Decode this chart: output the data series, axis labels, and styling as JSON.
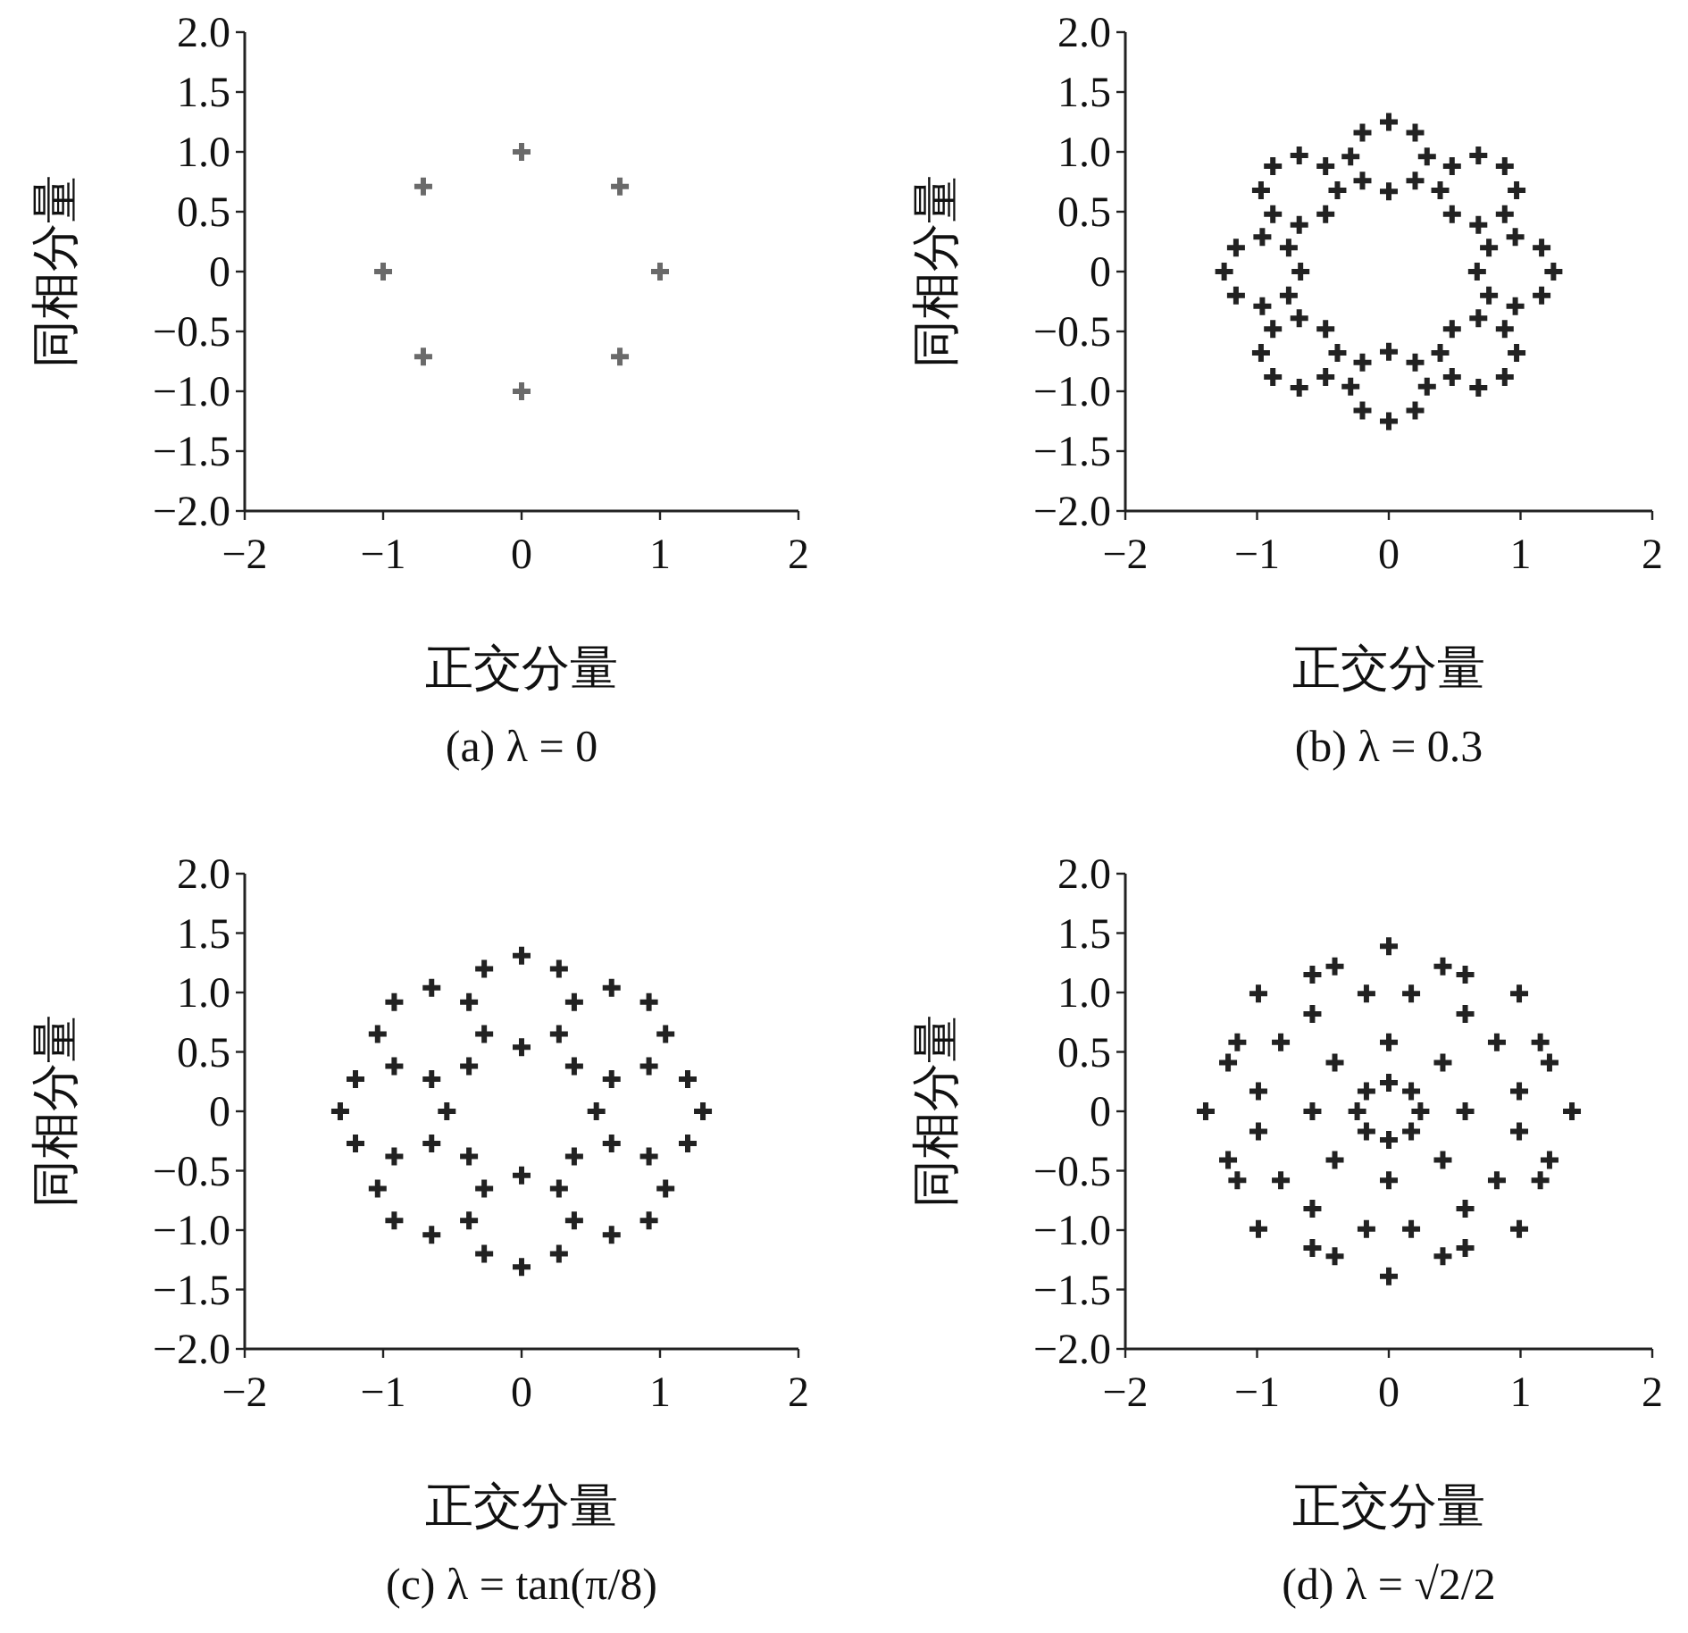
{
  "chart_data": [
    {
      "type": "scatter",
      "title": "(a) λ = 0",
      "xlabel": "正交分量",
      "ylabel": "同相分量",
      "marker": "cross",
      "xlim": [
        -2,
        2
      ],
      "ylim": [
        -2,
        2
      ],
      "xticks": [
        -2,
        -1,
        0,
        1,
        2
      ],
      "yticks": [
        {
          "value": 2,
          "label": "2.0"
        },
        1.5,
        {
          "value": 1,
          "label": "1.0"
        },
        0.5,
        0,
        {
          "value": -0.5,
          "label": "−0.5"
        },
        {
          "value": -1,
          "label": "−1.0"
        },
        {
          "value": -1.5,
          "label": "−1.5"
        },
        {
          "value": -2,
          "label": "−2.0"
        }
      ],
      "series": [
        {
          "color": "#6a6a6a",
          "x": [
            1,
            0.71,
            0,
            -0.71,
            -1,
            -0.71,
            0,
            0.71
          ],
          "values": [
            0,
            0.71,
            1,
            0.71,
            0,
            -0.71,
            -1,
            -0.71
          ]
        }
      ]
    },
    {
      "type": "scatter",
      "title": "(b) λ = 0.3",
      "xlabel": "正交分量",
      "ylabel": "同相分量",
      "marker": "cross",
      "xlim": [
        -2,
        2
      ],
      "ylim": [
        -2,
        2
      ],
      "xticks": [
        -2,
        -1,
        0,
        1,
        2
      ],
      "yticks": [
        {
          "value": 2,
          "label": "2.0"
        },
        1.5,
        {
          "value": 1,
          "label": "1.0"
        },
        0.5,
        0,
        {
          "value": -0.5,
          "label": "−0.5"
        },
        {
          "value": -1,
          "label": "−1.0"
        },
        {
          "value": -1.5,
          "label": "−1.5"
        },
        {
          "value": -2,
          "label": "−2.0"
        }
      ],
      "series": [
        {
          "color": "#222222",
          "x": [
            1.25,
            1.16,
            0.96,
            0.76,
            0.67,
            0.76,
            0.96,
            1.16,
            0.97,
            0.88,
            0.68,
            0.48,
            0.39,
            0.48,
            0.68,
            0.88,
            0.29,
            0.2,
            0,
            -0.2,
            -0.29,
            -0.2,
            0,
            0.2,
            -0.39,
            -0.48,
            -0.68,
            -0.88,
            -0.97,
            -0.88,
            -0.68,
            -0.48,
            -0.67,
            -0.76,
            -0.96,
            -1.16,
            -1.25,
            -1.16,
            -0.96,
            -0.76,
            -0.39,
            -0.48,
            -0.68,
            -0.88,
            -0.97,
            -0.88,
            -0.68,
            -0.48,
            0.29,
            0.2,
            0,
            -0.2,
            -0.29,
            -0.2,
            0,
            0.2,
            0.97,
            0.88,
            0.68,
            0.48,
            0.39,
            0.48,
            0.68,
            0.88
          ],
          "values": [
            0,
            0.2,
            0.29,
            0.2,
            0,
            -0.2,
            -0.29,
            -0.2,
            0.68,
            0.88,
            0.97,
            0.88,
            0.68,
            0.48,
            0.39,
            0.48,
            0.96,
            1.16,
            1.25,
            1.16,
            0.96,
            0.76,
            0.67,
            0.76,
            0.68,
            0.88,
            0.97,
            0.88,
            0.68,
            0.48,
            0.39,
            0.48,
            0,
            0.2,
            0.29,
            0.2,
            0,
            -0.2,
            -0.29,
            -0.2,
            -0.68,
            -0.48,
            -0.39,
            -0.48,
            -0.68,
            -0.88,
            -0.97,
            -0.88,
            -0.96,
            -0.76,
            -0.67,
            -0.76,
            -0.96,
            -1.16,
            -1.25,
            -1.16,
            -0.68,
            -0.48,
            -0.39,
            -0.48,
            -0.68,
            -0.88,
            -0.97,
            -0.88
          ]
        }
      ]
    },
    {
      "type": "scatter",
      "title": "(c) λ = tan(π/8)",
      "xlabel": "正交分量",
      "ylabel": "同相分量",
      "marker": "cross",
      "xlim": [
        -2,
        2
      ],
      "ylim": [
        -2,
        2
      ],
      "xticks": [
        -2,
        -1,
        0,
        1,
        2
      ],
      "yticks": [
        {
          "value": 2,
          "label": "2.0"
        },
        1.5,
        {
          "value": 1,
          "label": "1.0"
        },
        0.5,
        0,
        {
          "value": -0.5,
          "label": "−0.5"
        },
        {
          "value": -1,
          "label": "−1.0"
        },
        {
          "value": -1.5,
          "label": "−1.5"
        },
        {
          "value": -2,
          "label": "−2.0"
        }
      ],
      "series": [
        {
          "color": "#222222",
          "x": [
            1.31,
            1.2,
            0.92,
            0.65,
            0.54,
            1.2,
            1.04,
            0.92,
            0.65,
            0.38,
            0.27,
            0.38,
            0.27,
            0,
            -0.27,
            -0.38,
            -0.27,
            0,
            -0.65,
            -0.92,
            -1.04,
            -0.92,
            -0.65,
            -0.38,
            -0.54,
            -1.2,
            -1.31,
            -1.2,
            -0.92,
            -0.65,
            -0.27,
            -0.38,
            -1.04,
            -0.92,
            -0.65,
            -0.38,
            0.38,
            0.27,
            0,
            -0.27,
            0,
            0.27,
            1.04,
            0.92,
            0.65,
            0.38,
            0.65,
            0.92
          ],
          "values": [
            0,
            0.27,
            0.38,
            0.27,
            0,
            -0.27,
            0.65,
            0.92,
            1.04,
            0.92,
            0.65,
            0.38,
            1.2,
            1.31,
            1.2,
            0.92,
            0.65,
            0.54,
            1.04,
            0.92,
            0.65,
            0.38,
            0.27,
            0.38,
            0,
            0.27,
            0,
            -0.27,
            -0.38,
            -0.27,
            -0.65,
            -0.38,
            -0.65,
            -0.92,
            -1.04,
            -0.92,
            -0.92,
            -0.65,
            -0.54,
            -1.2,
            -1.31,
            -1.2,
            -0.65,
            -0.38,
            -0.27,
            -0.38,
            -1.04,
            -0.92
          ]
        }
      ]
    },
    {
      "type": "scatter",
      "title": "(d) λ = √2/2",
      "xlabel": "正交分量",
      "ylabel": "同相分量",
      "marker": "cross",
      "xlim": [
        -2,
        2
      ],
      "ylim": [
        -2,
        2
      ],
      "xticks": [
        -2,
        -1,
        0,
        1,
        2
      ],
      "yticks": [
        {
          "value": 2,
          "label": "2.0"
        },
        1.5,
        {
          "value": 1,
          "label": "1.0"
        },
        0.5,
        0,
        {
          "value": -0.5,
          "label": "−0.5"
        },
        {
          "value": -1,
          "label": "−1.0"
        },
        {
          "value": -1.5,
          "label": "−1.5"
        },
        {
          "value": -2,
          "label": "−2.0"
        }
      ],
      "series": [
        {
          "color": "#222222",
          "x": [
            1.39,
            1.22,
            0.82,
            0.41,
            0.24,
            0.82,
            1.22,
            1.15,
            0.99,
            0.58,
            0.17,
            0,
            0.17,
            0.99,
            0.58,
            0.41,
            0,
            -0.41,
            -0.58,
            -0.41,
            0,
            -0.17,
            -0.58,
            -0.99,
            -1.15,
            -0.99,
            -0.58,
            -0.17,
            -0.24,
            -0.82,
            -1.22,
            -1.39,
            -1.22,
            -0.82,
            -0.41,
            0,
            -0.17,
            -0.99,
            -1.15,
            -0.99,
            -0.58,
            -0.17,
            0.58,
            0.41,
            0,
            -0.58,
            -0.41,
            0,
            0.41,
            1.15,
            0.99,
            0.58,
            0.17,
            0.17,
            0.58,
            0.99
          ],
          "values": [
            0,
            0.41,
            0.58,
            0.41,
            0,
            -0.58,
            -0.41,
            0.58,
            0.99,
            1.15,
            0.99,
            0.58,
            0.17,
            0.17,
            0.82,
            1.22,
            1.39,
            1.22,
            0.82,
            0.41,
            0.24,
            0.99,
            1.15,
            0.99,
            0.58,
            0.17,
            0,
            0.17,
            0,
            0.58,
            0.41,
            0,
            -0.41,
            -0.58,
            -0.41,
            -0.58,
            -0.17,
            -0.17,
            -0.58,
            -0.99,
            -1.15,
            -0.99,
            -0.82,
            -0.41,
            -0.24,
            -0.82,
            -1.22,
            -1.39,
            -1.22,
            -0.58,
            -0.17,
            0,
            -0.17,
            -0.99,
            -1.15,
            -0.99
          ]
        }
      ]
    }
  ]
}
